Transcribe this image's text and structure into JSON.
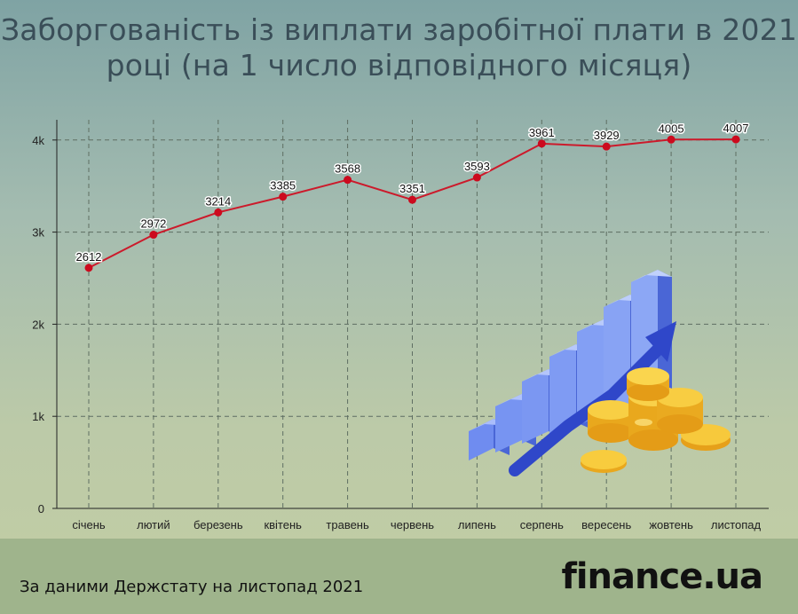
{
  "title": "Заборгованість із виплати заробітної плати в 2021 році (на 1 число відповідного місяця)",
  "source": "За даними  Держстату на листопад 2021",
  "logo": "finance.ua",
  "colors": {
    "line": "#cc1a2b",
    "point": "#cc0a1e",
    "grid": "#5e6e62",
    "axis": "#222222"
  },
  "illustration": "bar-growth-coins-icon",
  "chart_data": {
    "type": "line",
    "categories": [
      "січень",
      "лютий",
      "березень",
      "квітень",
      "травень",
      "червень",
      "липень",
      "серпень",
      "вересень",
      "жовтень",
      "листопад"
    ],
    "values": [
      2612,
      2972,
      3214,
      3385,
      3568,
      3351,
      3593,
      3961,
      3929,
      4005,
      4007
    ],
    "yticks": [
      "0",
      "1k",
      "2k",
      "3k",
      "4k"
    ],
    "ylim": [
      0,
      4200
    ],
    "grid": true
  }
}
